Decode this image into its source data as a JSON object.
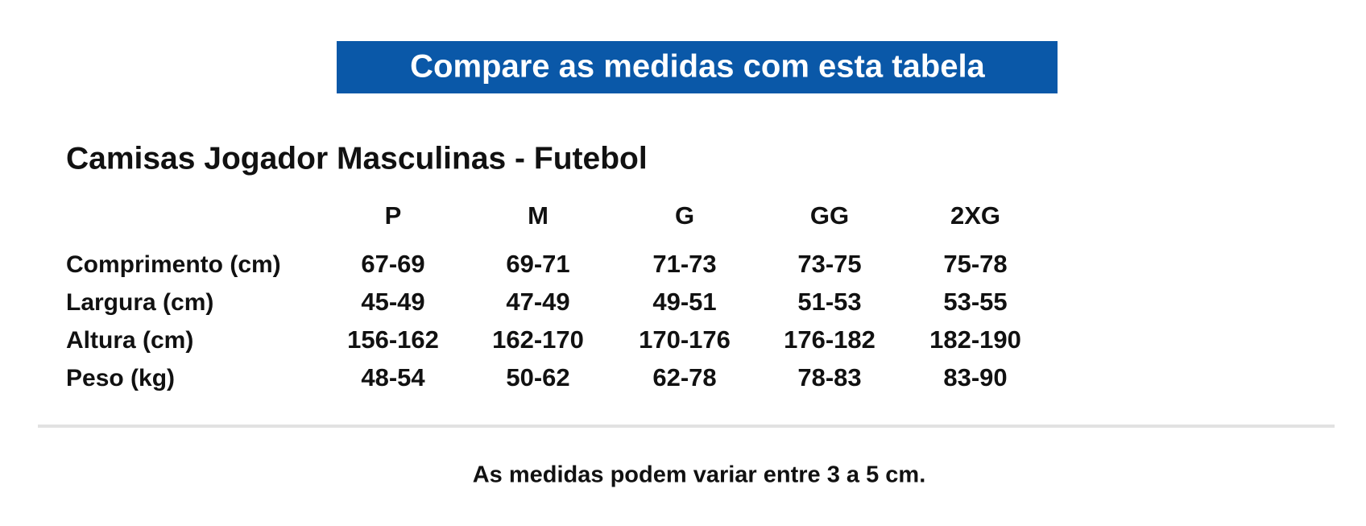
{
  "header": {
    "title": "Compare as medidas com esta tabela"
  },
  "table": {
    "title": "Camisas Jogador Masculinas - Futebol",
    "columns": [
      "P",
      "M",
      "G",
      "GG",
      "2XG"
    ],
    "rows": [
      {
        "label": "Comprimento (cm)",
        "values": [
          "67-69",
          "69-71",
          "71-73",
          "73-75",
          "75-78"
        ]
      },
      {
        "label": "Largura (cm)",
        "values": [
          "45-49",
          "47-49",
          "49-51",
          "51-53",
          "53-55"
        ]
      },
      {
        "label": "Altura (cm)",
        "values": [
          "156-162",
          "162-170",
          "170-176",
          "176-182",
          "182-190"
        ]
      },
      {
        "label": "Peso (kg)",
        "values": [
          "48-54",
          "50-62",
          "62-78",
          "78-83",
          "83-90"
        ]
      }
    ]
  },
  "footer": {
    "note": "As medidas podem variar entre 3 a 5 cm."
  }
}
